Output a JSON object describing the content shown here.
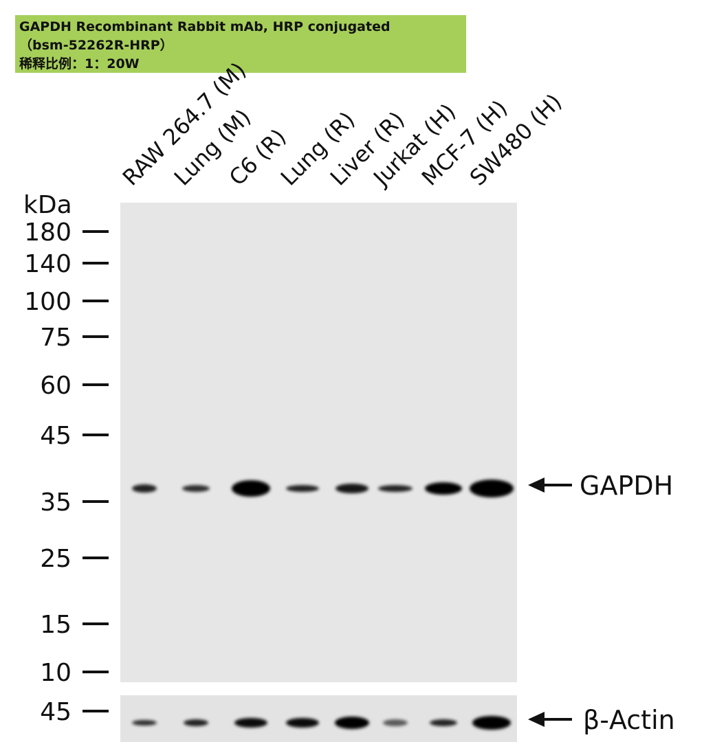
{
  "header": {
    "title": "GAPDH Recombinant Rabbit mAb, HRP conjugated",
    "catalog": "（bsm-52262R-HRP）",
    "dilution": "稀释比例：1：20W"
  },
  "lanes": [
    "RAW 264.7 (M)",
    "Lung (M)",
    "C6 (R)",
    "Lung (R)",
    "Liver (R)",
    "Jurkat (H)",
    "MCF-7 (H)",
    "SW480 (H)"
  ],
  "markers": {
    "unit": "kDa",
    "labels": [
      "180",
      "140",
      "100",
      "75",
      "60",
      "45",
      "35",
      "25",
      "15",
      "10"
    ],
    "actin_label": "45"
  },
  "targets": [
    "GAPDH",
    "β-Actin"
  ]
}
